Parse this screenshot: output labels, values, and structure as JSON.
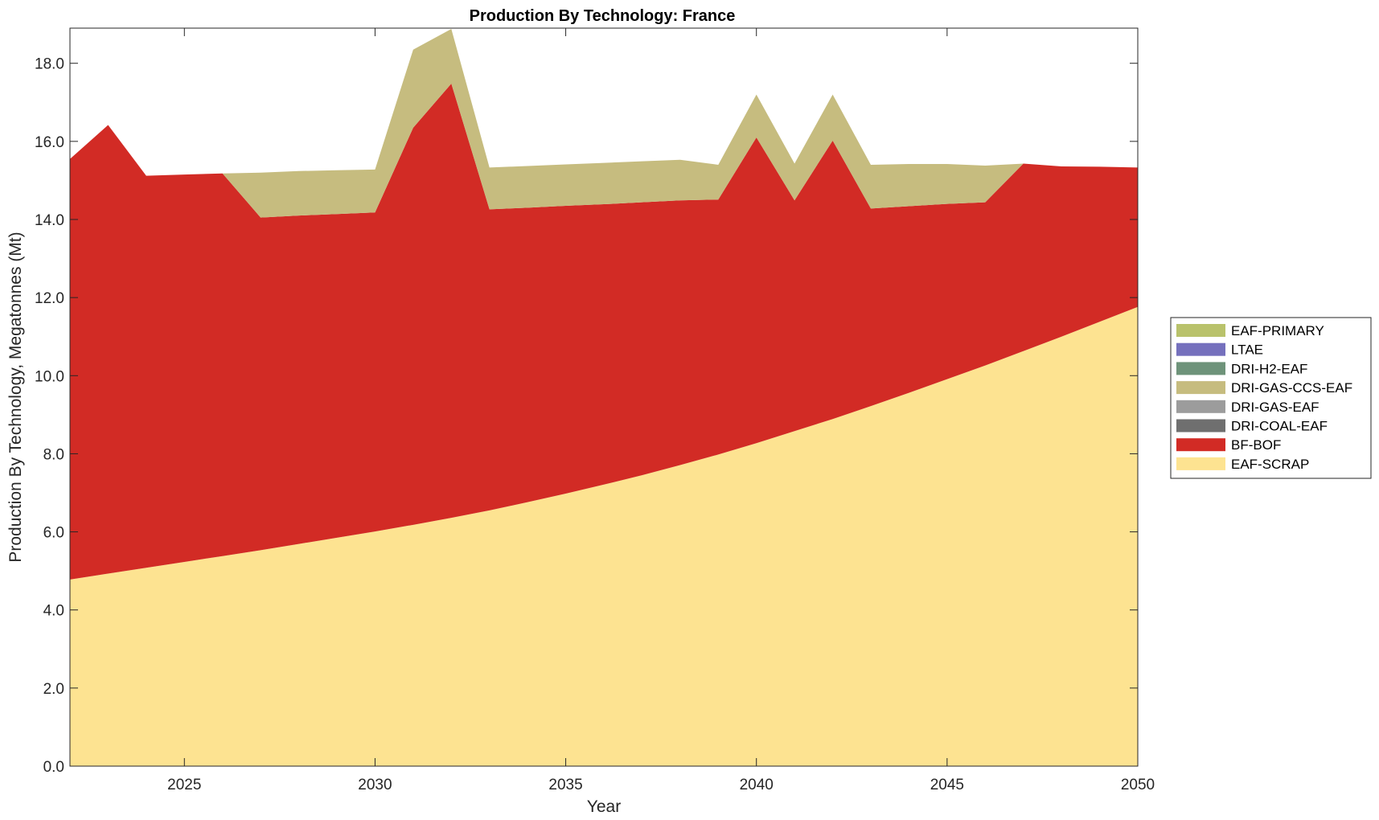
{
  "chart_data": {
    "type": "area",
    "stacked": true,
    "title": "Production By Technology: France",
    "xlabel": "Year",
    "ylabel": "Production By Technology, Megatonnes (Mt)",
    "xlim": [
      2022,
      2050
    ],
    "ylim": [
      0,
      18.9
    ],
    "x_ticks": [
      2025,
      2030,
      2035,
      2040,
      2045,
      2050
    ],
    "y_ticks": [
      0,
      2,
      4,
      6,
      8,
      10,
      12,
      14,
      16,
      18
    ],
    "y_tick_labels": [
      "0.0",
      "2.0",
      "4.0",
      "6.0",
      "8.0",
      "10.0",
      "12.0",
      "14.0",
      "16.0",
      "18.0"
    ],
    "grid": false,
    "legend_position": "right",
    "x": [
      2022,
      2023,
      2024,
      2025,
      2026,
      2027,
      2028,
      2029,
      2030,
      2031,
      2032,
      2033,
      2034,
      2035,
      2036,
      2037,
      2038,
      2039,
      2040,
      2041,
      2042,
      2043,
      2044,
      2045,
      2046,
      2047,
      2048,
      2049,
      2050
    ],
    "series": [
      {
        "name": "EAF-SCRAP",
        "color": "#fde391",
        "values": [
          4.78,
          4.93,
          5.08,
          5.23,
          5.38,
          5.53,
          5.69,
          5.85,
          6.01,
          6.18,
          6.36,
          6.55,
          6.76,
          6.98,
          7.21,
          7.45,
          7.71,
          7.98,
          8.27,
          8.58,
          8.89,
          9.22,
          9.56,
          9.91,
          10.26,
          10.63,
          11.0,
          11.38,
          11.76
        ]
      },
      {
        "name": "BF-BOF",
        "color": "#d22b25",
        "values": [
          10.77,
          11.49,
          10.04,
          9.92,
          9.8,
          8.52,
          8.41,
          8.29,
          8.17,
          10.17,
          11.12,
          7.71,
          7.54,
          7.37,
          7.18,
          6.99,
          6.78,
          6.53,
          7.83,
          5.91,
          7.13,
          5.06,
          4.78,
          4.49,
          4.18,
          4.8,
          4.36,
          3.97,
          3.57
        ]
      },
      {
        "name": "DRI-COAL-EAF",
        "color": "#6f6f6f",
        "values": [
          0,
          0,
          0,
          0,
          0,
          0,
          0,
          0,
          0,
          0,
          0,
          0,
          0,
          0,
          0,
          0,
          0,
          0,
          0,
          0,
          0,
          0,
          0,
          0,
          0,
          0,
          0,
          0,
          0
        ]
      },
      {
        "name": "DRI-GAS-EAF",
        "color": "#9c9c9c",
        "values": [
          0,
          0,
          0,
          0,
          0,
          0,
          0,
          0,
          0,
          0,
          0,
          0,
          0,
          0,
          0,
          0,
          0,
          0,
          0,
          0,
          0,
          0,
          0,
          0,
          0,
          0,
          0,
          0,
          0
        ]
      },
      {
        "name": "DRI-GAS-CCS-EAF",
        "color": "#c6bc7f",
        "values": [
          0,
          0,
          0,
          0,
          0,
          1.15,
          1.14,
          1.12,
          1.1,
          2.0,
          1.4,
          1.07,
          1.07,
          1.06,
          1.06,
          1.05,
          1.04,
          0.89,
          1.1,
          0.94,
          1.18,
          1.12,
          1.08,
          1.02,
          0.94,
          0,
          0,
          0,
          0
        ]
      },
      {
        "name": "DRI-H2-EAF",
        "color": "#6e937a",
        "values": [
          0,
          0,
          0,
          0,
          0,
          0,
          0,
          0,
          0,
          0,
          0,
          0,
          0,
          0,
          0,
          0,
          0,
          0,
          0,
          0,
          0,
          0,
          0,
          0,
          0,
          0,
          0,
          0,
          0
        ]
      },
      {
        "name": "LTAE",
        "color": "#7570bd",
        "values": [
          0,
          0,
          0,
          0,
          0,
          0,
          0,
          0,
          0,
          0,
          0,
          0,
          0,
          0,
          0,
          0,
          0,
          0,
          0,
          0,
          0,
          0,
          0,
          0,
          0,
          0,
          0,
          0,
          0
        ]
      },
      {
        "name": "EAF-PRIMARY",
        "color": "#b9c26b",
        "values": [
          0,
          0,
          0,
          0,
          0,
          0,
          0,
          0,
          0,
          0,
          0,
          0,
          0,
          0,
          0,
          0,
          0,
          0,
          0,
          0,
          0,
          0,
          0,
          0,
          0,
          0,
          0,
          0,
          0
        ]
      }
    ],
    "legend_order": [
      "EAF-PRIMARY",
      "LTAE",
      "DRI-H2-EAF",
      "DRI-GAS-CCS-EAF",
      "DRI-GAS-EAF",
      "DRI-COAL-EAF",
      "BF-BOF",
      "EAF-SCRAP"
    ]
  }
}
